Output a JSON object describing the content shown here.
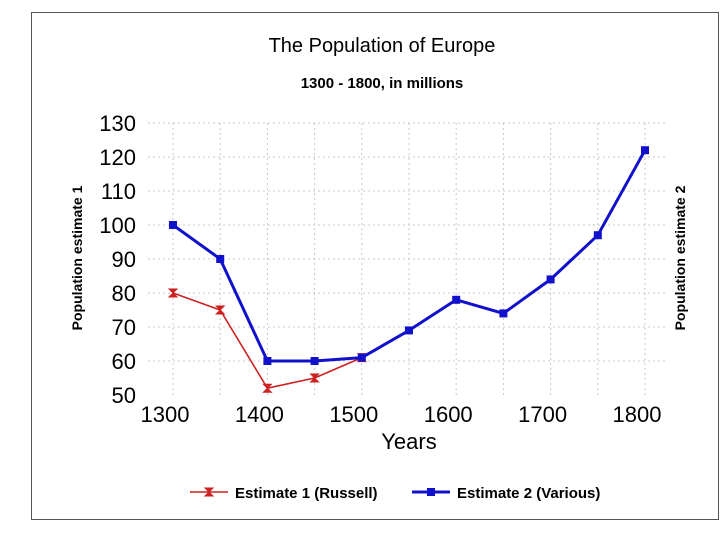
{
  "chart_data": {
    "type": "line",
    "title": "The Population of Europe",
    "subtitle": "1300 - 1800, in millions",
    "xlabel": "Years",
    "ylabel_left": "Population estimate 1",
    "ylabel_right": "Population estimate 2",
    "xlim": [
      1300,
      1800
    ],
    "ylim": [
      50,
      130
    ],
    "xticks": [
      1300,
      1400,
      1500,
      1600,
      1700,
      1800
    ],
    "yticks": [
      50,
      60,
      70,
      80,
      90,
      100,
      110,
      120,
      130
    ],
    "grid": true,
    "legend_position": "bottom",
    "series": [
      {
        "name": "Estimate 1 (Russell)",
        "color": "#cc2222",
        "marker": "hourglass",
        "x": [
          1300,
          1350,
          1400,
          1450,
          1500
        ],
        "y": [
          80,
          75,
          52,
          55,
          61
        ]
      },
      {
        "name": "Estimate 2 (Various)",
        "color": "#1111cc",
        "marker": "square",
        "x": [
          1300,
          1350,
          1400,
          1450,
          1500,
          1550,
          1600,
          1650,
          1700,
          1750,
          1800
        ],
        "y": [
          100,
          90,
          60,
          60,
          61,
          69,
          78,
          74,
          84,
          97,
          122
        ]
      }
    ]
  }
}
